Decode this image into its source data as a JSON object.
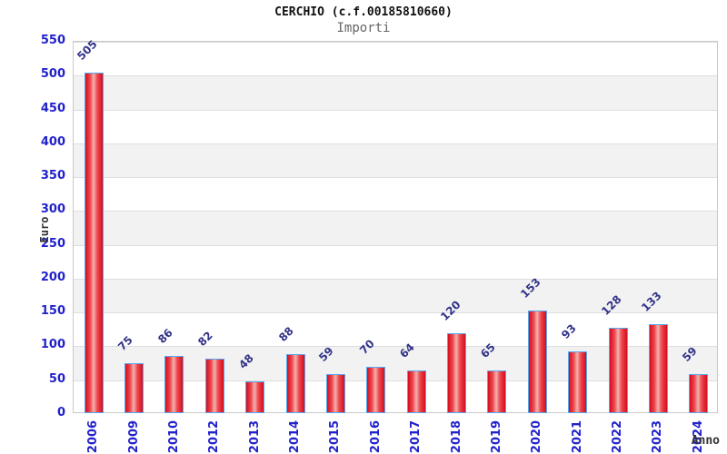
{
  "title": "CERCHIO (c.f.00185810660)",
  "subtitle": "Importi",
  "chart_data": {
    "type": "bar",
    "title": "CERCHIO (c.f.00185810660)",
    "subtitle": "Importi",
    "categories": [
      "2006",
      "2009",
      "2010",
      "2012",
      "2013",
      "2014",
      "2015",
      "2016",
      "2017",
      "2018",
      "2019",
      "2020",
      "2021",
      "2022",
      "2023",
      "2024"
    ],
    "values": [
      505,
      75,
      86,
      82,
      48,
      88,
      59,
      70,
      64,
      120,
      65,
      153,
      93,
      128,
      133,
      59
    ],
    "xlabel": "Anno",
    "ylabel": "Euro",
    "ylim": [
      0,
      550
    ],
    "ytick_step": 50,
    "grid": "horizontal-bands-alternating",
    "legend": "none",
    "value_labels": "rotated-45-above-bars",
    "category_labels": "rotated-90-vertical"
  },
  "colors": {
    "axis_tick_label": "#2222cc",
    "value_label": "#333388",
    "bar_edge": "#55a9f2",
    "bar_red_dark": "#d60d1e",
    "bar_red_mid": "#ee4a50",
    "bar_red_light": "#f3b2b0",
    "band_gray": "#f2f2f2",
    "gridline": "#dedede",
    "plot_border": "#c9c9c9",
    "title_color": "#111111",
    "subtitle_color": "#666666",
    "axis_title_color": "#333333"
  }
}
